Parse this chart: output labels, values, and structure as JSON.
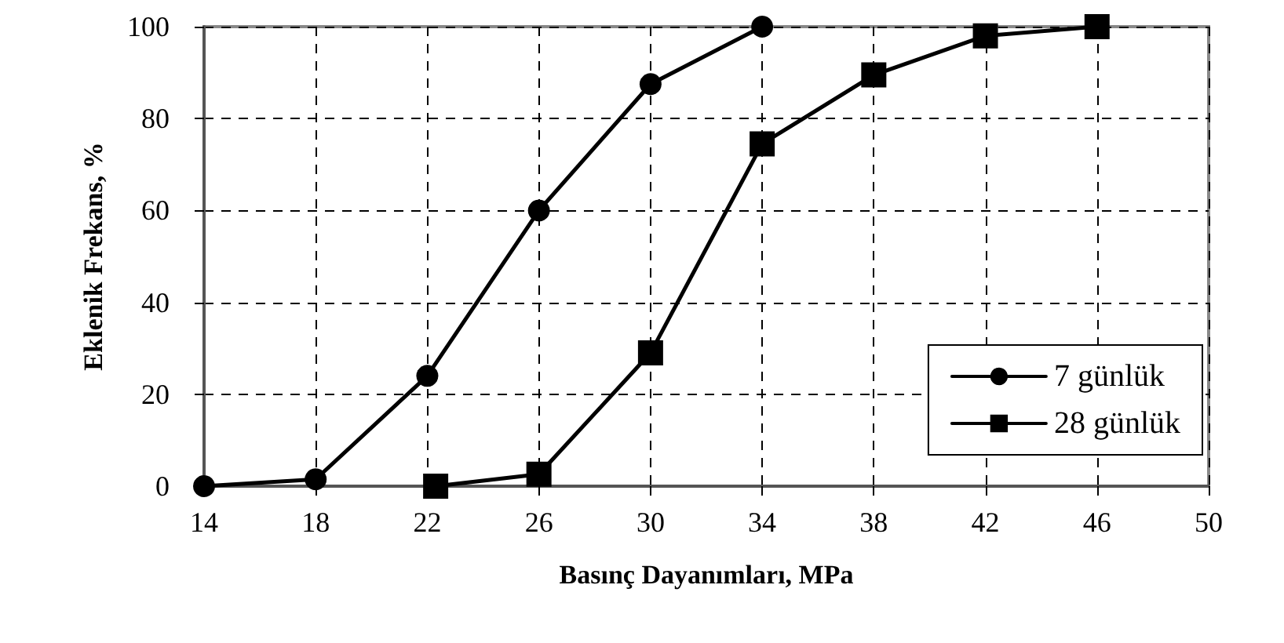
{
  "chart_data": {
    "type": "line",
    "xlabel": "Basınç Dayanımları, MPa",
    "ylabel": "Eklenik Frekans, %",
    "xlim": [
      14,
      50
    ],
    "xticks": [
      14,
      18,
      22,
      26,
      30,
      34,
      38,
      42,
      46,
      50
    ],
    "ylim": [
      0,
      100
    ],
    "yticks": [
      0,
      20,
      40,
      60,
      80,
      100
    ],
    "grid": true,
    "legend": "bottom right",
    "line_style": "solid",
    "series": [
      {
        "name": "7 günlük",
        "color": "#000000",
        "marker": "circle",
        "x": [
          14,
          18,
          22,
          26,
          30,
          34
        ],
        "values": [
          0,
          1.5,
          24,
          60,
          87.5,
          100
        ]
      },
      {
        "name": "28 günlük",
        "color": "#000000",
        "marker": "square",
        "x": [
          22.3,
          26,
          30,
          34,
          38,
          42,
          46
        ],
        "values": [
          0,
          2.6,
          29,
          74.5,
          89.5,
          98,
          100
        ]
      }
    ]
  }
}
